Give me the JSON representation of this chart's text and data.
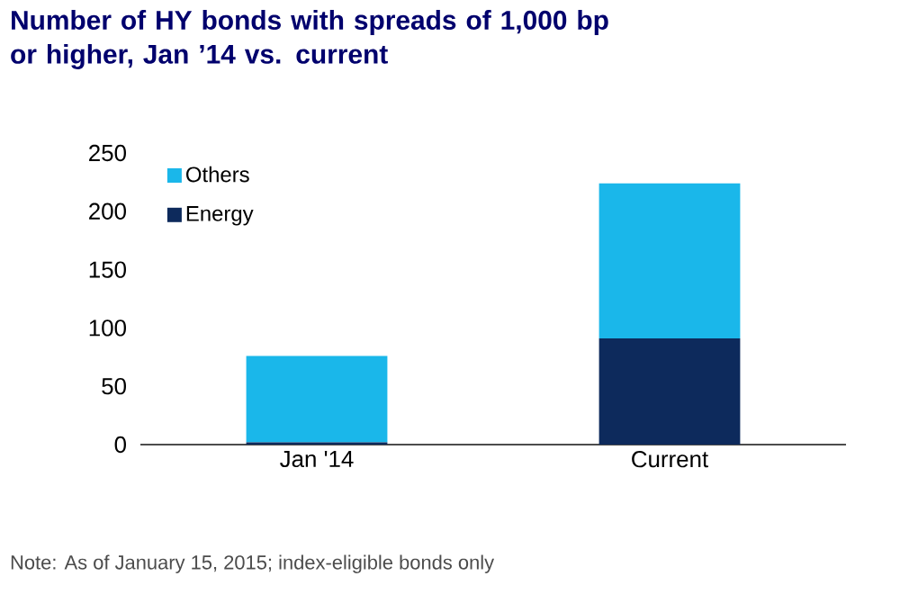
{
  "chart_data": {
    "type": "bar",
    "title": "Number of HY bonds with spreads of 1,000 bp or higher, Jan ’14 vs. current",
    "categories": [
      "Jan '14",
      "Current"
    ],
    "stacked": true,
    "series": [
      {
        "name": "Energy",
        "color": "#0d2a5c",
        "values": [
          2,
          91
        ]
      },
      {
        "name": "Others",
        "color": "#1ab7ea",
        "values": [
          74,
          133
        ]
      }
    ],
    "ylim": [
      0,
      250
    ],
    "yticks": [
      0,
      50,
      100,
      150,
      200,
      250
    ],
    "legend": "top left",
    "annotations": [
      "Note: As of January 15, 2015; index-eligible bonds only"
    ]
  }
}
